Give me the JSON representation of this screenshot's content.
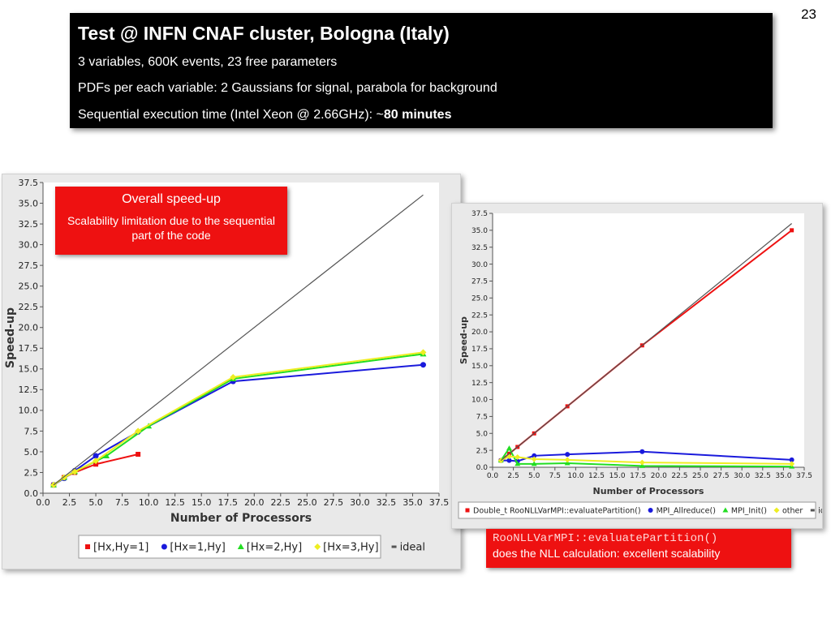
{
  "slide_number": "23",
  "header": {
    "title": "Test @ INFN CNAF cluster, Bologna (Italy)",
    "line1": "3 variables, 600K events, 23 free parameters",
    "line2": "PDFs per each variable: 2 Gaussians for signal, parabola for background",
    "line3_prefix": "Sequential execution time (Intel Xeon @ 2.66GHz): ~",
    "line3_bold": "80 minutes"
  },
  "note_left": {
    "title": "Overall speed-up",
    "text": "Scalability limitation due to the sequential part of the code"
  },
  "note_right": {
    "code": "RooNLLVarMPI::evaluatePartition()",
    "text": "does the NLL calculation: excellent scalability"
  },
  "chart_data": [
    {
      "type": "line",
      "xlabel": "Number of Processors",
      "ylabel": "Speed-up",
      "xlim": [
        0,
        37.5
      ],
      "ylim": [
        0,
        37.5
      ],
      "xticks": [
        "0.0",
        "2.5",
        "5.0",
        "7.5",
        "10.0",
        "12.5",
        "15.0",
        "17.5",
        "20.0",
        "22.5",
        "25.0",
        "27.5",
        "30.0",
        "32.5",
        "35.0",
        "37.5"
      ],
      "yticks": [
        "0.0",
        "2.5",
        "5.0",
        "7.5",
        "10.0",
        "12.5",
        "15.0",
        "17.5",
        "20.0",
        "22.5",
        "25.0",
        "27.5",
        "30.0",
        "32.5",
        "35.0",
        "37.5"
      ],
      "grid": false,
      "legend_position": "bottom",
      "series": [
        {
          "name": "[Hx,Hy=1]",
          "color": "#ee1111",
          "marker": "square",
          "x": [
            1,
            2,
            3,
            5,
            9
          ],
          "y": [
            1.0,
            1.9,
            2.5,
            3.5,
            4.7
          ]
        },
        {
          "name": "[Hx=1,Hy]",
          "color": "#1a1adc",
          "marker": "circle",
          "x": [
            1,
            2,
            3,
            5,
            9,
            18,
            36
          ],
          "y": [
            1.0,
            1.8,
            2.7,
            4.5,
            7.4,
            13.5,
            15.5
          ]
        },
        {
          "name": "[Hx=2,Hy]",
          "color": "#22dd22",
          "marker": "triangle",
          "x": [
            1,
            2,
            3,
            6,
            10,
            18,
            36
          ],
          "y": [
            1.0,
            1.9,
            2.6,
            4.5,
            8.1,
            13.8,
            16.8
          ]
        },
        {
          "name": "[Hx=3,Hy]",
          "color": "#eeee22",
          "marker": "diamond",
          "x": [
            1,
            2,
            3,
            5,
            9,
            18,
            36
          ],
          "y": [
            1.0,
            1.9,
            2.6,
            3.9,
            7.5,
            14.0,
            17.0
          ]
        },
        {
          "name": "ideal",
          "color": "#555555",
          "marker": "dash",
          "x": [
            1,
            36
          ],
          "y": [
            1,
            36
          ]
        }
      ]
    },
    {
      "type": "line",
      "xlabel": "Number of Processors",
      "ylabel": "Speed-up",
      "xlim": [
        0,
        37.5
      ],
      "ylim": [
        0,
        37.5
      ],
      "xticks": [
        "0.0",
        "2.5",
        "5.0",
        "7.5",
        "10.0",
        "12.5",
        "15.0",
        "17.5",
        "20.0",
        "22.5",
        "25.0",
        "27.5",
        "30.0",
        "32.5",
        "35.0",
        "37.5"
      ],
      "yticks": [
        "0.0",
        "2.5",
        "5.0",
        "7.5",
        "10.0",
        "12.5",
        "15.0",
        "17.5",
        "20.0",
        "22.5",
        "25.0",
        "27.5",
        "30.0",
        "32.5",
        "35.0",
        "37.5"
      ],
      "grid": false,
      "legend_position": "bottom",
      "series": [
        {
          "name": "Double_t RooNLLVarMPI::evaluatePartition()",
          "color": "#ee1111",
          "marker": "square",
          "x": [
            1,
            2,
            3,
            5,
            9,
            18,
            36
          ],
          "y": [
            1.0,
            2.0,
            3.0,
            5.0,
            9.0,
            18.0,
            35.0
          ]
        },
        {
          "name": "MPI_Allreduce()",
          "color": "#1a1adc",
          "marker": "circle",
          "x": [
            1,
            2,
            3,
            5,
            9,
            18,
            36
          ],
          "y": [
            1.0,
            1.0,
            0.9,
            1.7,
            1.9,
            2.3,
            1.1
          ]
        },
        {
          "name": "MPI_Init()",
          "color": "#22dd22",
          "marker": "triangle",
          "x": [
            1,
            2,
            3,
            5,
            9,
            18,
            36
          ],
          "y": [
            1.0,
            2.8,
            0.5,
            0.5,
            0.6,
            0.2,
            0.1
          ]
        },
        {
          "name": "other",
          "color": "#eeee22",
          "marker": "diamond",
          "x": [
            1,
            2,
            3,
            5,
            9,
            18,
            36
          ],
          "y": [
            1.0,
            1.6,
            1.5,
            1.2,
            1.1,
            0.7,
            0.5
          ]
        },
        {
          "name": "ideal",
          "color": "#555555",
          "marker": "dash",
          "x": [
            1,
            36
          ],
          "y": [
            1,
            36
          ]
        }
      ]
    }
  ]
}
